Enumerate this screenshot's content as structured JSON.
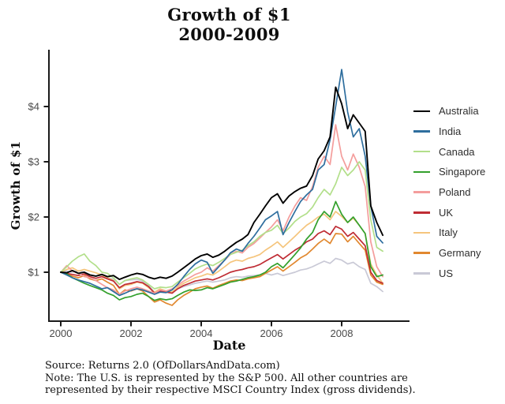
{
  "page": {
    "background": "#ffffff"
  },
  "title": {
    "line1": "Growth of $1",
    "line2": "2000-2009"
  },
  "axis_labels": {
    "x": "Date",
    "y": "Growth of $1"
  },
  "footnote": {
    "line1": "Source: Returns 2.0 (OfDollarsAndData.com)",
    "line2": "Note: The U.S. is represented by the S&P 500. All other countries are",
    "line3": "represented by their respective MSCI Country Index (gross dividends)."
  },
  "style": {
    "axis_color": "#1a1a1a",
    "tick_label_color": "#4a4a4a"
  },
  "chart_data": {
    "type": "line",
    "title": "Growth of $1 2000-2009",
    "xlabel": "Date",
    "ylabel": "Growth of $1",
    "grid": false,
    "legend_position": "right",
    "x_ticks": [
      {
        "label": "2000",
        "value": 2000
      },
      {
        "label": "2002",
        "value": 2002
      },
      {
        "label": "2004",
        "value": 2004
      },
      {
        "label": "2006",
        "value": 2006
      },
      {
        "label": "2008",
        "value": 2008
      }
    ],
    "y_ticks": [
      {
        "label": "$1",
        "value": 1
      },
      {
        "label": "$2",
        "value": 2
      },
      {
        "label": "$3",
        "value": 3
      },
      {
        "label": "$4",
        "value": 4
      }
    ],
    "x_range": [
      1999.65,
      2009.9
    ],
    "y_range": [
      0.1,
      5.05
    ],
    "x_years": [
      2000,
      2000.17,
      2000.33,
      2000.5,
      2000.67,
      2000.83,
      2001,
      2001.17,
      2001.33,
      2001.5,
      2001.67,
      2001.83,
      2002,
      2002.17,
      2002.33,
      2002.5,
      2002.67,
      2002.83,
      2003,
      2003.17,
      2003.33,
      2003.5,
      2003.67,
      2003.83,
      2004,
      2004.17,
      2004.33,
      2004.5,
      2004.67,
      2004.83,
      2005,
      2005.17,
      2005.33,
      2005.5,
      2005.67,
      2005.83,
      2006,
      2006.17,
      2006.33,
      2006.5,
      2006.67,
      2006.83,
      2007,
      2007.17,
      2007.33,
      2007.5,
      2007.67,
      2007.83,
      2008,
      2008.17,
      2008.33,
      2008.5,
      2008.67,
      2008.83,
      2009,
      2009.17
    ],
    "series": [
      {
        "name": "Australia",
        "color": "#000000",
        "values": [
          1.0,
          0.99,
          1.03,
          0.98,
          1.0,
          0.95,
          0.93,
          0.96,
          0.92,
          0.94,
          0.87,
          0.91,
          0.95,
          0.98,
          0.96,
          0.91,
          0.88,
          0.91,
          0.89,
          0.93,
          1.0,
          1.08,
          1.16,
          1.24,
          1.3,
          1.33,
          1.27,
          1.31,
          1.38,
          1.46,
          1.54,
          1.6,
          1.68,
          1.9,
          2.05,
          2.2,
          2.35,
          2.42,
          2.25,
          2.38,
          2.46,
          2.52,
          2.56,
          2.75,
          3.05,
          3.2,
          3.45,
          4.35,
          4.05,
          3.6,
          3.85,
          3.7,
          3.55,
          2.2,
          1.9,
          1.67
        ]
      },
      {
        "name": "India",
        "color": "#2e6e9e",
        "values": [
          1.0,
          0.95,
          0.9,
          0.86,
          0.83,
          0.8,
          0.75,
          0.7,
          0.72,
          0.65,
          0.58,
          0.62,
          0.67,
          0.7,
          0.68,
          0.64,
          0.6,
          0.64,
          0.63,
          0.68,
          0.78,
          0.92,
          1.05,
          1.15,
          1.22,
          1.18,
          0.98,
          1.1,
          1.22,
          1.35,
          1.42,
          1.38,
          1.52,
          1.65,
          1.8,
          1.95,
          2.02,
          2.1,
          1.68,
          1.9,
          2.1,
          2.28,
          2.4,
          2.5,
          2.85,
          2.95,
          3.4,
          4.0,
          4.67,
          3.9,
          3.45,
          3.6,
          3.1,
          2.2,
          1.65,
          1.53
        ]
      },
      {
        "name": "Canada",
        "color": "#b2df8a",
        "values": [
          1.0,
          1.1,
          1.2,
          1.28,
          1.33,
          1.2,
          1.12,
          1.0,
          0.98,
          0.9,
          0.78,
          0.85,
          0.88,
          0.9,
          0.86,
          0.78,
          0.7,
          0.73,
          0.72,
          0.74,
          0.82,
          0.9,
          0.98,
          1.06,
          1.11,
          1.15,
          1.12,
          1.18,
          1.25,
          1.32,
          1.36,
          1.4,
          1.48,
          1.55,
          1.65,
          1.72,
          1.76,
          1.85,
          1.7,
          1.8,
          1.92,
          2.0,
          2.06,
          2.18,
          2.35,
          2.5,
          2.4,
          2.6,
          2.9,
          2.75,
          2.85,
          3.0,
          2.85,
          1.95,
          1.45,
          1.38
        ]
      },
      {
        "name": "Singapore",
        "color": "#33a02c",
        "values": [
          1.0,
          0.97,
          0.9,
          0.85,
          0.8,
          0.76,
          0.72,
          0.68,
          0.62,
          0.58,
          0.5,
          0.54,
          0.56,
          0.6,
          0.62,
          0.56,
          0.49,
          0.52,
          0.5,
          0.52,
          0.58,
          0.64,
          0.68,
          0.67,
          0.68,
          0.72,
          0.7,
          0.74,
          0.78,
          0.82,
          0.84,
          0.87,
          0.9,
          0.92,
          0.95,
          1.0,
          1.1,
          1.16,
          1.08,
          1.2,
          1.32,
          1.44,
          1.6,
          1.72,
          1.95,
          2.1,
          2.0,
          2.28,
          2.05,
          1.9,
          2.0,
          1.85,
          1.7,
          1.1,
          0.92,
          0.95
        ]
      },
      {
        "name": "Poland",
        "color": "#f49d9c",
        "values": [
          1.0,
          1.12,
          1.02,
          0.98,
          0.92,
          0.9,
          0.85,
          0.78,
          0.72,
          0.68,
          0.6,
          0.66,
          0.7,
          0.73,
          0.7,
          0.66,
          0.62,
          0.68,
          0.66,
          0.7,
          0.76,
          0.84,
          0.9,
          0.96,
          1.0,
          1.08,
          1.02,
          1.12,
          1.22,
          1.32,
          1.38,
          1.35,
          1.45,
          1.52,
          1.62,
          1.72,
          1.82,
          1.95,
          1.75,
          2.0,
          2.2,
          2.35,
          2.3,
          2.55,
          2.9,
          3.1,
          2.95,
          3.67,
          3.1,
          2.85,
          3.14,
          2.9,
          2.55,
          1.55,
          1.1,
          0.92
        ]
      },
      {
        "name": "UK",
        "color": "#bf2c34",
        "values": [
          1.0,
          0.98,
          0.96,
          0.94,
          0.97,
          0.92,
          0.89,
          0.92,
          0.88,
          0.84,
          0.72,
          0.78,
          0.8,
          0.83,
          0.81,
          0.74,
          0.62,
          0.66,
          0.64,
          0.62,
          0.7,
          0.76,
          0.8,
          0.84,
          0.86,
          0.88,
          0.86,
          0.9,
          0.95,
          1.0,
          1.03,
          1.05,
          1.08,
          1.1,
          1.14,
          1.2,
          1.26,
          1.32,
          1.24,
          1.32,
          1.4,
          1.46,
          1.55,
          1.6,
          1.7,
          1.75,
          1.68,
          1.83,
          1.78,
          1.65,
          1.72,
          1.6,
          1.48,
          1.0,
          0.85,
          0.8
        ]
      },
      {
        "name": "Italy",
        "color": "#f5c57d",
        "values": [
          1.0,
          1.05,
          1.08,
          1.02,
          1.05,
          1.02,
          0.99,
          0.95,
          0.9,
          0.85,
          0.7,
          0.76,
          0.78,
          0.82,
          0.8,
          0.72,
          0.64,
          0.7,
          0.66,
          0.64,
          0.73,
          0.8,
          0.85,
          0.9,
          0.93,
          0.97,
          0.95,
          1.02,
          1.1,
          1.18,
          1.22,
          1.2,
          1.25,
          1.28,
          1.32,
          1.4,
          1.47,
          1.55,
          1.45,
          1.55,
          1.65,
          1.75,
          1.85,
          1.92,
          2.0,
          2.05,
          1.95,
          2.1,
          2.01,
          1.9,
          1.98,
          1.85,
          1.7,
          1.15,
          0.95,
          0.8
        ]
      },
      {
        "name": "Germany",
        "color": "#e1882f",
        "values": [
          1.0,
          0.97,
          0.93,
          0.9,
          0.94,
          0.88,
          0.85,
          0.88,
          0.82,
          0.76,
          0.6,
          0.68,
          0.66,
          0.7,
          0.66,
          0.56,
          0.46,
          0.5,
          0.44,
          0.4,
          0.5,
          0.58,
          0.64,
          0.7,
          0.73,
          0.75,
          0.71,
          0.76,
          0.8,
          0.84,
          0.86,
          0.85,
          0.88,
          0.9,
          0.92,
          0.98,
          1.04,
          1.1,
          1.02,
          1.1,
          1.18,
          1.26,
          1.32,
          1.42,
          1.52,
          1.6,
          1.52,
          1.7,
          1.69,
          1.55,
          1.65,
          1.52,
          1.4,
          0.95,
          0.82,
          0.78
        ]
      },
      {
        "name": "US",
        "color": "#c9c9d6",
        "values": [
          1.0,
          1.02,
          1.0,
          1.03,
          1.0,
          0.96,
          0.93,
          0.95,
          0.9,
          0.88,
          0.78,
          0.85,
          0.86,
          0.87,
          0.84,
          0.76,
          0.64,
          0.68,
          0.65,
          0.64,
          0.7,
          0.74,
          0.77,
          0.8,
          0.82,
          0.84,
          0.82,
          0.84,
          0.86,
          0.9,
          0.92,
          0.91,
          0.93,
          0.94,
          0.95,
          0.98,
          0.95,
          0.98,
          0.94,
          0.97,
          1.0,
          1.04,
          1.06,
          1.1,
          1.15,
          1.2,
          1.16,
          1.25,
          1.22,
          1.15,
          1.18,
          1.1,
          1.05,
          0.8,
          0.74,
          0.65
        ]
      }
    ]
  }
}
